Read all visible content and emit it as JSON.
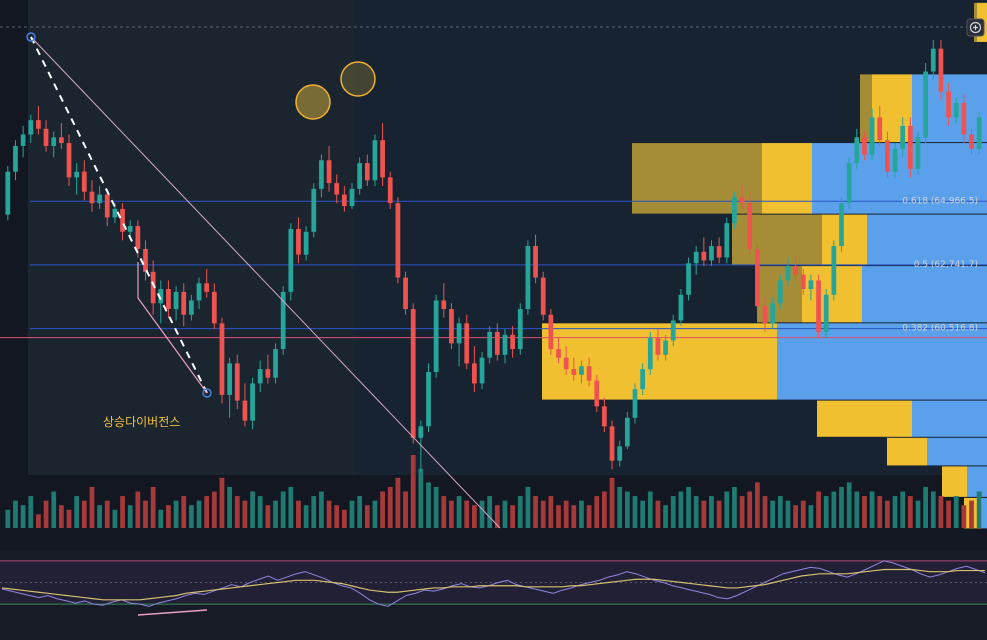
{
  "theme": {
    "bg": "#131722",
    "panel_bg": "#161b26",
    "shade_bg": "#1a2530",
    "up": "#26a69a",
    "down": "#ef5350",
    "up_vol": "#1f7a72",
    "down_vol": "#a63a3a",
    "vp_yellow": "#f0c030",
    "vp_yellow_dim": "#c9a63a",
    "vp_blue": "#5aa0ea",
    "fib_line": "#2a55c8",
    "price_line": "#e0506e",
    "trend_line": "#d7a8c8",
    "rsi_line": "#8f86e0",
    "rsi_ma": "#d8c070",
    "rsi_band": "#2a2540"
  },
  "toolbar": {
    "add_icon": "plus-circle-icon"
  },
  "chart_data": [
    {
      "type": "candlestick",
      "title": "",
      "xlabel": "",
      "ylabel": "",
      "ylim": [
        55400,
        72000
      ],
      "candles": [
        [
          64500,
          66200,
          64300,
          66000
        ],
        [
          66000,
          67100,
          65700,
          66900
        ],
        [
          66900,
          67600,
          66500,
          67300
        ],
        [
          67300,
          68000,
          67000,
          67800
        ],
        [
          67800,
          68300,
          67300,
          67500
        ],
        [
          67500,
          67800,
          66700,
          66900
        ],
        [
          66900,
          67400,
          66500,
          67200
        ],
        [
          67200,
          67700,
          66800,
          67000
        ],
        [
          67000,
          67300,
          65500,
          65800
        ],
        [
          65800,
          66300,
          65200,
          66000
        ],
        [
          66000,
          66400,
          65000,
          65300
        ],
        [
          65300,
          65700,
          64600,
          64900
        ],
        [
          64900,
          65500,
          64700,
          65200
        ],
        [
          65200,
          65400,
          64100,
          64400
        ],
        [
          64400,
          64900,
          64200,
          64700
        ],
        [
          64700,
          64900,
          63600,
          63900
        ],
        [
          63900,
          64300,
          63700,
          64100
        ],
        [
          64100,
          64300,
          63000,
          63300
        ],
        [
          63300,
          63600,
          62200,
          62500
        ],
        [
          62500,
          62900,
          61000,
          61400
        ],
        [
          61400,
          62200,
          60700,
          61900
        ],
        [
          61900,
          62200,
          60900,
          61200
        ],
        [
          61200,
          62000,
          60800,
          61800
        ],
        [
          61800,
          62100,
          60600,
          61000
        ],
        [
          61000,
          61700,
          60800,
          61500
        ],
        [
          61500,
          62300,
          61200,
          62100
        ],
        [
          62100,
          62600,
          61600,
          61800
        ],
        [
          61800,
          62100,
          60500,
          60700
        ],
        [
          60700,
          60900,
          57900,
          58200
        ],
        [
          58200,
          59500,
          57400,
          59300
        ],
        [
          59300,
          59600,
          57700,
          58000
        ],
        [
          58000,
          58600,
          57100,
          57300
        ],
        [
          57300,
          58800,
          57000,
          58600
        ],
        [
          58600,
          59400,
          58300,
          59100
        ],
        [
          59100,
          59600,
          58600,
          58800
        ],
        [
          58800,
          60000,
          58600,
          59800
        ],
        [
          59800,
          62000,
          59600,
          61800
        ],
        [
          61800,
          64200,
          61500,
          64000
        ],
        [
          64000,
          64400,
          62800,
          63100
        ],
        [
          63100,
          64100,
          62900,
          63900
        ],
        [
          63900,
          65600,
          63700,
          65400
        ],
        [
          65400,
          66600,
          65100,
          66400
        ],
        [
          66400,
          66900,
          65300,
          65600
        ],
        [
          65600,
          65900,
          64900,
          65200
        ],
        [
          65200,
          65500,
          64600,
          64800
        ],
        [
          64800,
          65600,
          64700,
          65400
        ],
        [
          65400,
          66500,
          65200,
          66300
        ],
        [
          66300,
          66600,
          65500,
          65700
        ],
        [
          65700,
          67300,
          65500,
          67100
        ],
        [
          67100,
          67700,
          65500,
          65800
        ],
        [
          65800,
          66000,
          64700,
          64900
        ],
        [
          64900,
          65100,
          62100,
          62300
        ],
        [
          62300,
          62500,
          61000,
          61200
        ],
        [
          61200,
          61400,
          56500,
          56700
        ],
        [
          56700,
          57300,
          55500,
          57100
        ],
        [
          57100,
          59300,
          56900,
          59000
        ],
        [
          59000,
          61700,
          58800,
          61500
        ],
        [
          61500,
          62100,
          60900,
          61200
        ],
        [
          61200,
          61400,
          59800,
          60000
        ],
        [
          60000,
          60900,
          59200,
          60700
        ],
        [
          60700,
          61000,
          59100,
          59300
        ],
        [
          59300,
          59900,
          58300,
          58600
        ],
        [
          58600,
          59700,
          58400,
          59500
        ],
        [
          59500,
          60600,
          59300,
          60400
        ],
        [
          60400,
          60700,
          59400,
          59600
        ],
        [
          59600,
          60500,
          59300,
          60300
        ],
        [
          60300,
          60600,
          59500,
          59800
        ],
        [
          59800,
          61400,
          59600,
          61200
        ],
        [
          61200,
          63600,
          61000,
          63400
        ],
        [
          63400,
          63800,
          62100,
          62300
        ],
        [
          62300,
          62500,
          60800,
          61000
        ],
        [
          61000,
          61200,
          59600,
          59800
        ],
        [
          59800,
          60200,
          59300,
          59500
        ],
        [
          59500,
          59900,
          58900,
          59100
        ],
        [
          59100,
          59500,
          58700,
          58900
        ],
        [
          58900,
          59400,
          58600,
          59200
        ],
        [
          59200,
          59500,
          58500,
          58700
        ],
        [
          58700,
          58900,
          57600,
          57800
        ],
        [
          57800,
          58100,
          56900,
          57100
        ],
        [
          57100,
          57300,
          55600,
          55900
        ],
        [
          55900,
          56600,
          55700,
          56400
        ],
        [
          56400,
          57600,
          56300,
          57400
        ],
        [
          57400,
          58600,
          57200,
          58400
        ],
        [
          58400,
          59300,
          58200,
          59100
        ],
        [
          59100,
          60400,
          58900,
          60200
        ],
        [
          60200,
          60500,
          59400,
          59600
        ],
        [
          59600,
          60300,
          59400,
          60100
        ],
        [
          60100,
          61000,
          59900,
          60800
        ],
        [
          60800,
          61900,
          60600,
          61700
        ],
        [
          61700,
          63000,
          61500,
          62800
        ],
        [
          62800,
          63400,
          62400,
          63200
        ],
        [
          63200,
          63700,
          62700,
          62900
        ],
        [
          62900,
          63600,
          62700,
          63400
        ],
        [
          63400,
          63700,
          62800,
          63000
        ],
        [
          63000,
          64400,
          62800,
          64200
        ],
        [
          64200,
          65300,
          64000,
          65100
        ],
        [
          65100,
          65500,
          64700,
          64900
        ],
        [
          64900,
          65300,
          63100,
          63300
        ],
        [
          63300,
          63500,
          61100,
          61300
        ],
        [
          61300,
          61600,
          60400,
          60700
        ],
        [
          60700,
          61600,
          60500,
          61400
        ],
        [
          61400,
          62400,
          61200,
          62200
        ],
        [
          62200,
          63000,
          62000,
          62700
        ],
        [
          62700,
          63100,
          62200,
          62400
        ],
        [
          62400,
          62600,
          61700,
          61900
        ],
        [
          61900,
          62400,
          61500,
          62200
        ],
        [
          62200,
          62400,
          60200,
          60400
        ],
        [
          60400,
          61900,
          60200,
          61700
        ],
        [
          61700,
          63600,
          61500,
          63400
        ],
        [
          63400,
          65100,
          63200,
          64900
        ],
        [
          64900,
          66500,
          64700,
          66300
        ],
        [
          66300,
          67500,
          66100,
          67200
        ],
        [
          67200,
          67400,
          66400,
          66600
        ],
        [
          66600,
          68200,
          66400,
          67900
        ],
        [
          67900,
          68300,
          66900,
          67100
        ],
        [
          67100,
          67400,
          65800,
          66000
        ],
        [
          66000,
          67000,
          65800,
          66800
        ],
        [
          66800,
          67900,
          66500,
          67600
        ],
        [
          67600,
          67900,
          65800,
          66100
        ],
        [
          66100,
          67400,
          65900,
          67200
        ],
        [
          67200,
          69800,
          67000,
          69500
        ],
        [
          69500,
          70600,
          69200,
          70300
        ],
        [
          70300,
          70600,
          68500,
          68800
        ],
        [
          68800,
          69100,
          67600,
          67900
        ],
        [
          67900,
          68600,
          67700,
          68400
        ],
        [
          68400,
          68700,
          67000,
          67300
        ],
        [
          67300,
          67500,
          66600,
          66800
        ],
        [
          66800,
          68100,
          66600,
          67900
        ]
      ],
      "volume": [
        4,
        6,
        5,
        7,
        3,
        6,
        8,
        5,
        4,
        7,
        6,
        9,
        5,
        6,
        4,
        7,
        5,
        8,
        6,
        9,
        4,
        5,
        6,
        7,
        5,
        6,
        7,
        8,
        11,
        9,
        7,
        6,
        8,
        7,
        5,
        6,
        8,
        9,
        6,
        5,
        7,
        8,
        6,
        5,
        4,
        6,
        7,
        5,
        6,
        8,
        9,
        11,
        8,
        16,
        13,
        10,
        9,
        7,
        6,
        7,
        6,
        5,
        6,
        7,
        5,
        6,
        5,
        7,
        9,
        7,
        6,
        7,
        5,
        6,
        5,
        6,
        5,
        7,
        8,
        11,
        9,
        8,
        7,
        6,
        8,
        6,
        5,
        7,
        8,
        9,
        7,
        6,
        7,
        6,
        8,
        9,
        7,
        8,
        10,
        7,
        6,
        7,
        6,
        5,
        6,
        5,
        8,
        7,
        8,
        9,
        10,
        8,
        7,
        8,
        7,
        6,
        7,
        8,
        7,
        6,
        9,
        8,
        7,
        6,
        7,
        5,
        6,
        8
      ],
      "fib_levels": [
        {
          "ratio": "0.618",
          "price": 64966.5,
          "label": "0.618 (64,966.5)"
        },
        {
          "ratio": "0.5",
          "price": 62741.7,
          "label": "0.5 (62,741.7)"
        },
        {
          "ratio": "0.382",
          "price": 60516.8,
          "label": "0.382 (60,516.8)"
        }
      ],
      "horizontal_line_price": 60200,
      "annotation": "상승다이버전스",
      "volume_profile": [
        {
          "low": 70500,
          "high": 71900,
          "dim": 3,
          "yellow": 10,
          "blue": 0
        },
        {
          "low": 67000,
          "high": 69400,
          "dim": 12,
          "yellow": 40,
          "blue": 75
        },
        {
          "low": 64500,
          "high": 67000,
          "dim": 130,
          "yellow": 50,
          "blue": 175
        },
        {
          "low": 62700,
          "high": 64500,
          "dim": 90,
          "yellow": 45,
          "blue": 120
        },
        {
          "low": 60700,
          "high": 62700,
          "dim": 45,
          "yellow": 60,
          "blue": 125
        },
        {
          "low": 58000,
          "high": 60700,
          "dim": 0,
          "yellow": 235,
          "blue": 210
        },
        {
          "low": 56700,
          "high": 58000,
          "dim": 0,
          "yellow": 95,
          "blue": 75
        },
        {
          "low": 55700,
          "high": 56700,
          "dim": 0,
          "yellow": 40,
          "blue": 60
        },
        {
          "low": 54600,
          "high": 55700,
          "dim": 0,
          "yellow": 25,
          "blue": 20
        },
        {
          "low": 53500,
          "high": 54600,
          "dim": 0,
          "yellow": 18,
          "blue": 5
        }
      ],
      "rsi": {
        "ylim": [
          20,
          80
        ],
        "bands": [
          30,
          70
        ],
        "values": [
          44,
          42,
          40,
          38,
          36,
          38,
          35,
          33,
          31,
          33,
          30,
          29,
          32,
          34,
          31,
          30,
          28,
          31,
          33,
          35,
          38,
          40,
          39,
          42,
          45,
          48,
          46,
          50,
          53,
          56,
          52,
          55,
          58,
          60,
          57,
          54,
          50,
          47,
          45,
          40,
          34,
          30,
          28,
          33,
          38,
          40,
          43,
          42,
          44,
          47,
          49,
          46,
          45,
          47,
          50,
          52,
          48,
          46,
          44,
          42,
          40,
          43,
          45,
          48,
          50,
          52,
          55,
          57,
          60,
          58,
          55,
          52,
          50,
          47,
          45,
          43,
          41,
          39,
          36,
          35,
          38,
          42,
          46,
          50,
          54,
          58,
          60,
          62,
          64,
          63,
          60,
          57,
          55,
          58,
          62,
          66,
          70,
          68,
          65,
          62,
          58,
          55,
          57,
          60,
          63,
          65,
          62,
          59
        ],
        "ma": [
          45,
          44,
          43,
          42,
          41,
          40,
          39,
          38,
          37,
          36,
          35,
          34,
          34,
          34,
          34,
          34,
          35,
          36,
          37,
          38,
          40,
          41,
          42,
          43,
          44,
          45,
          46,
          47,
          48,
          49,
          50,
          51,
          52,
          52,
          52,
          51,
          50,
          49,
          47,
          45,
          43,
          42,
          41,
          41,
          42,
          43,
          44,
          45,
          45,
          46,
          46,
          46,
          47,
          47,
          47,
          47,
          47,
          46,
          46,
          46,
          46,
          46,
          47,
          47,
          48,
          49,
          50,
          51,
          52,
          53,
          53,
          53,
          52,
          51,
          50,
          49,
          48,
          47,
          46,
          45,
          45,
          46,
          47,
          48,
          50,
          52,
          54,
          56,
          57,
          58,
          58,
          58,
          58,
          59,
          60,
          61,
          62,
          62,
          62,
          62,
          61,
          60,
          60,
          60,
          61,
          61,
          61,
          61
        ]
      }
    }
  ]
}
